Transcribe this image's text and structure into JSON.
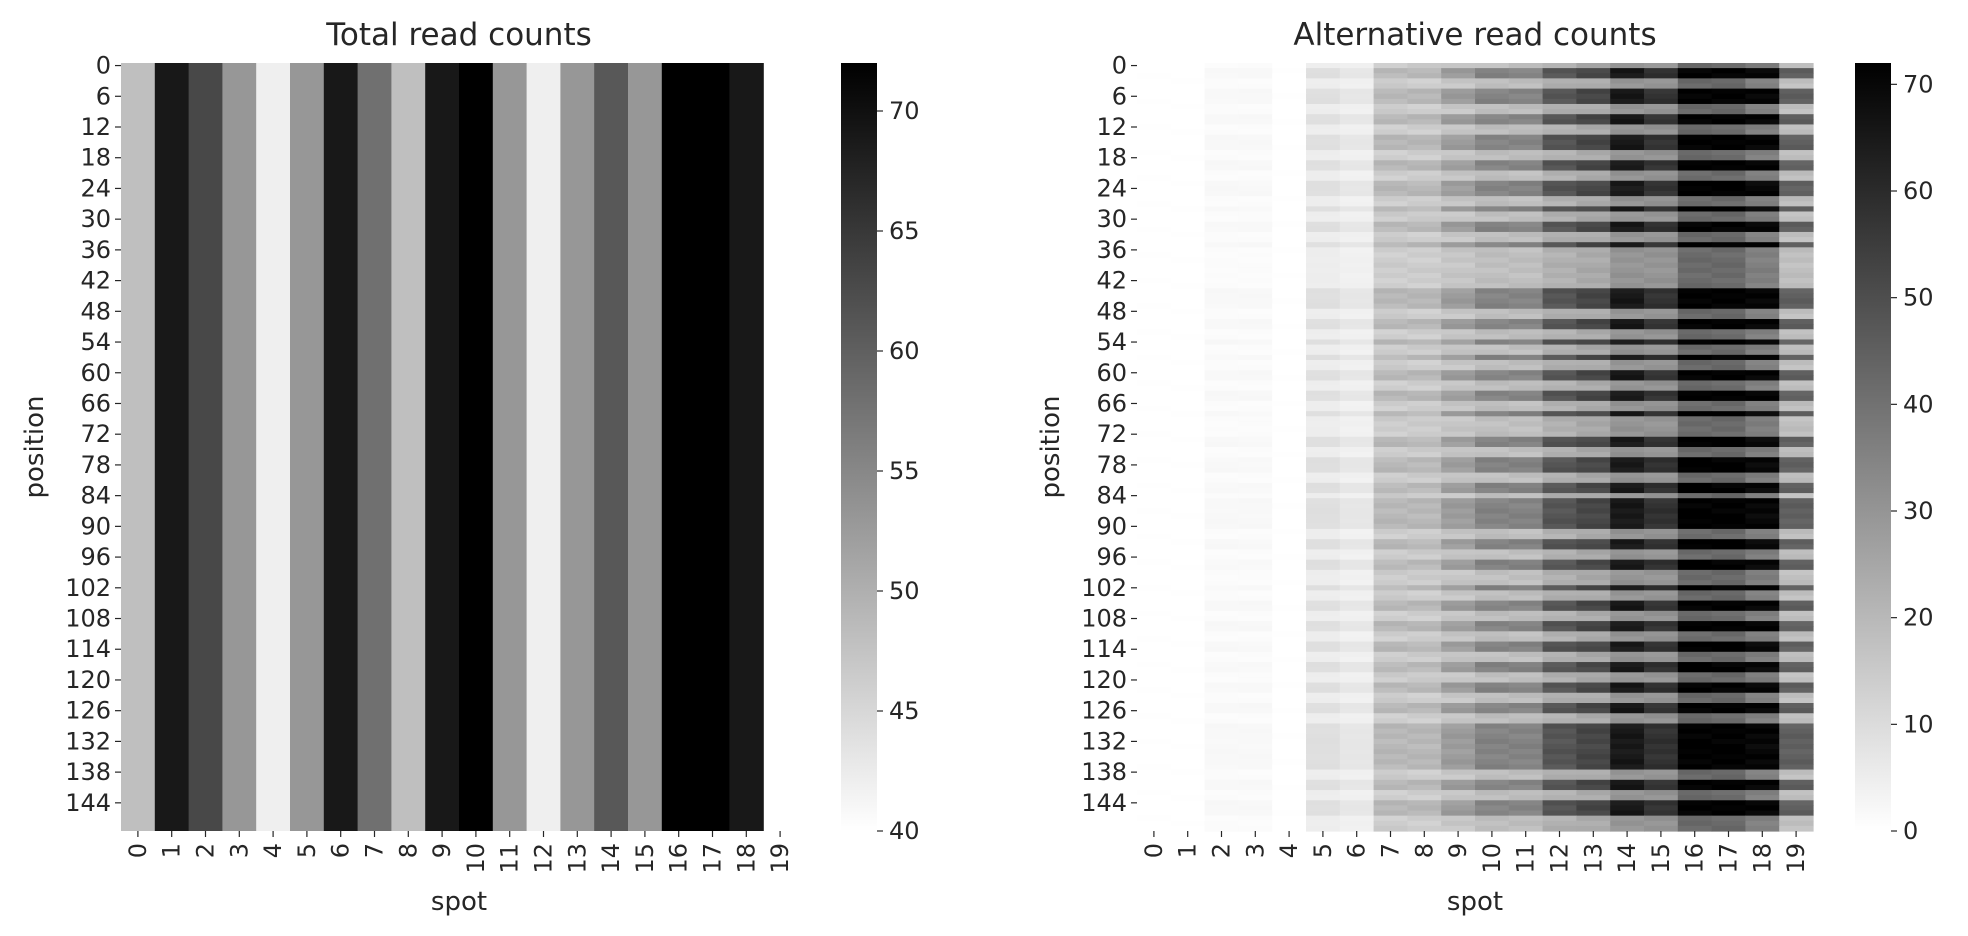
{
  "chart_data": [
    {
      "type": "heatmap",
      "title": "Total read counts",
      "xlabel": "spot",
      "ylabel": "position",
      "x_ticks": [
        0,
        1,
        2,
        3,
        4,
        5,
        6,
        7,
        8,
        9,
        10,
        11,
        12,
        13,
        14,
        15,
        16,
        17,
        18,
        19
      ],
      "y_ticks": [
        0,
        6,
        12,
        18,
        24,
        30,
        36,
        42,
        48,
        54,
        60,
        66,
        72,
        78,
        84,
        90,
        96,
        102,
        108,
        114,
        120,
        126,
        132,
        138,
        144
      ],
      "rows": 150,
      "colormap": "greys",
      "color_range": [
        40,
        72
      ],
      "colorbar_ticks": [
        40,
        45,
        50,
        55,
        60,
        65,
        70
      ],
      "column_values": [
        48,
        69,
        63,
        53,
        42,
        53,
        69,
        58,
        48,
        69,
        72,
        53,
        42,
        53,
        61,
        53,
        72,
        72,
        69,
        null
      ]
    },
    {
      "type": "heatmap",
      "title": "Alternative read counts",
      "xlabel": "spot",
      "ylabel": "position",
      "x_ticks": [
        0,
        1,
        2,
        3,
        4,
        5,
        6,
        7,
        8,
        9,
        10,
        11,
        12,
        13,
        14,
        15,
        16,
        17,
        18,
        19
      ],
      "y_ticks": [
        0,
        6,
        12,
        18,
        24,
        30,
        36,
        42,
        48,
        54,
        60,
        66,
        72,
        78,
        84,
        90,
        96,
        102,
        108,
        114,
        120,
        126,
        132,
        138,
        144
      ],
      "rows": 150,
      "colormap": "greys",
      "color_range": [
        0,
        72
      ],
      "colorbar_ticks": [
        0,
        10,
        20,
        30,
        40,
        50,
        60,
        70
      ],
      "column_values_high_rows": [
        0,
        0,
        2,
        2,
        0,
        9,
        7,
        20,
        20,
        28,
        35,
        35,
        48,
        52,
        65,
        58,
        72,
        72,
        70,
        45
      ],
      "column_values_low_rows": [
        0,
        0,
        1,
        1,
        0,
        5,
        4,
        14,
        14,
        16,
        18,
        18,
        22,
        24,
        30,
        30,
        42,
        42,
        36,
        18
      ]
    }
  ]
}
